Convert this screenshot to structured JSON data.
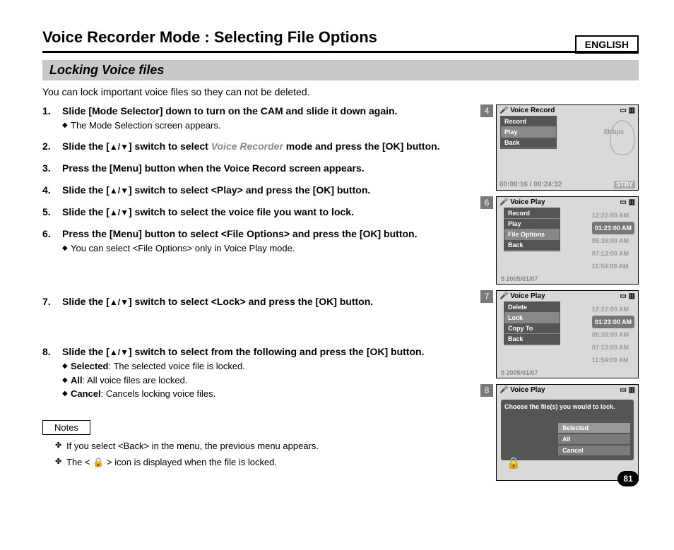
{
  "lang_label": "ENGLISH",
  "page_title": "Voice Recorder Mode : Selecting File Options",
  "section_heading": "Locking Voice files",
  "intro_text": "You can lock important voice files so they can not be deleted.",
  "steps": {
    "1": {
      "main": "Slide [Mode Selector] down to turn on the CAM and slide it down again.",
      "sub": "The Mode Selection screen appears."
    },
    "2": {
      "pre": "Slide the [",
      "arrows": "▲/▼",
      "mid": "] switch to select ",
      "grey": "Voice Recorder",
      "post": " mode and press the [OK] button."
    },
    "3": {
      "main": "Press the [Menu] button when the Voice Record screen appears."
    },
    "4": {
      "pre": "Slide the [",
      "arrows": "▲/▼",
      "post": "] switch to select <Play> and press the [OK] button."
    },
    "5": {
      "pre": "Slide the [",
      "arrows": "▲/▼",
      "post": "] switch to select the voice file you want to lock."
    },
    "6": {
      "main": "Press the [Menu] button to select <File Options> and press the [OK] button.",
      "sub": "You can select <File Options> only in Voice Play mode."
    },
    "7": {
      "pre": "Slide the [",
      "arrows": "▲/▼",
      "post": "] switch to select <Lock> and press the [OK] button."
    },
    "8": {
      "pre": "Slide the [",
      "arrows": "▲/▼",
      "post": "] switch to select from the following and press the [OK] button.",
      "subs": [
        {
          "b": "Selected",
          "t": ": The selected voice file is locked."
        },
        {
          "b": "All",
          "t": ": All voice files are locked."
        },
        {
          "b": "Cancel",
          "t": ": Cancels locking voice files."
        }
      ]
    }
  },
  "notes_label": "Notes",
  "notes": [
    "If you select <Back> in the menu, the previous menu appears.",
    "The < 🔒 > icon is displayed when the file is locked."
  ],
  "page_number": "81",
  "screens": {
    "4": {
      "badge": "4",
      "title": "Voice Record",
      "menu": [
        "Record",
        "Play",
        "Back"
      ],
      "menu_hl_index": 1,
      "bitrate": "8Kbps",
      "time": "00:00:16 / 00:24:32",
      "status": "STBY"
    },
    "6": {
      "badge": "6",
      "title": "Voice Play",
      "menu": [
        "Record",
        "Play",
        "File Options",
        "Back"
      ],
      "menu_hl_index": 2,
      "times": [
        "12:22:00 AM",
        "01:23:00 AM",
        "05:39:00 AM",
        "07:13:00 AM",
        "11:54:00 AM"
      ],
      "times_hl_index": 1,
      "row5": "5   2005/01/07"
    },
    "7": {
      "badge": "7",
      "title": "Voice Play",
      "menu": [
        "Delete",
        "Lock",
        "Copy To",
        "Back"
      ],
      "menu_hl_index": 1,
      "times": [
        "12:22:00 AM",
        "01:23:00 AM",
        "05:39:00 AM",
        "07:13:00 AM",
        "11:54:00 AM"
      ],
      "times_hl_index": 1,
      "row5": "5   2005/01/07"
    },
    "8": {
      "badge": "8",
      "title": "Voice Play",
      "dialog_text": "Choose the file(s) you would to lock.",
      "options": [
        "Selected",
        "All",
        "Cancel"
      ],
      "option_hl_index": 0
    }
  }
}
